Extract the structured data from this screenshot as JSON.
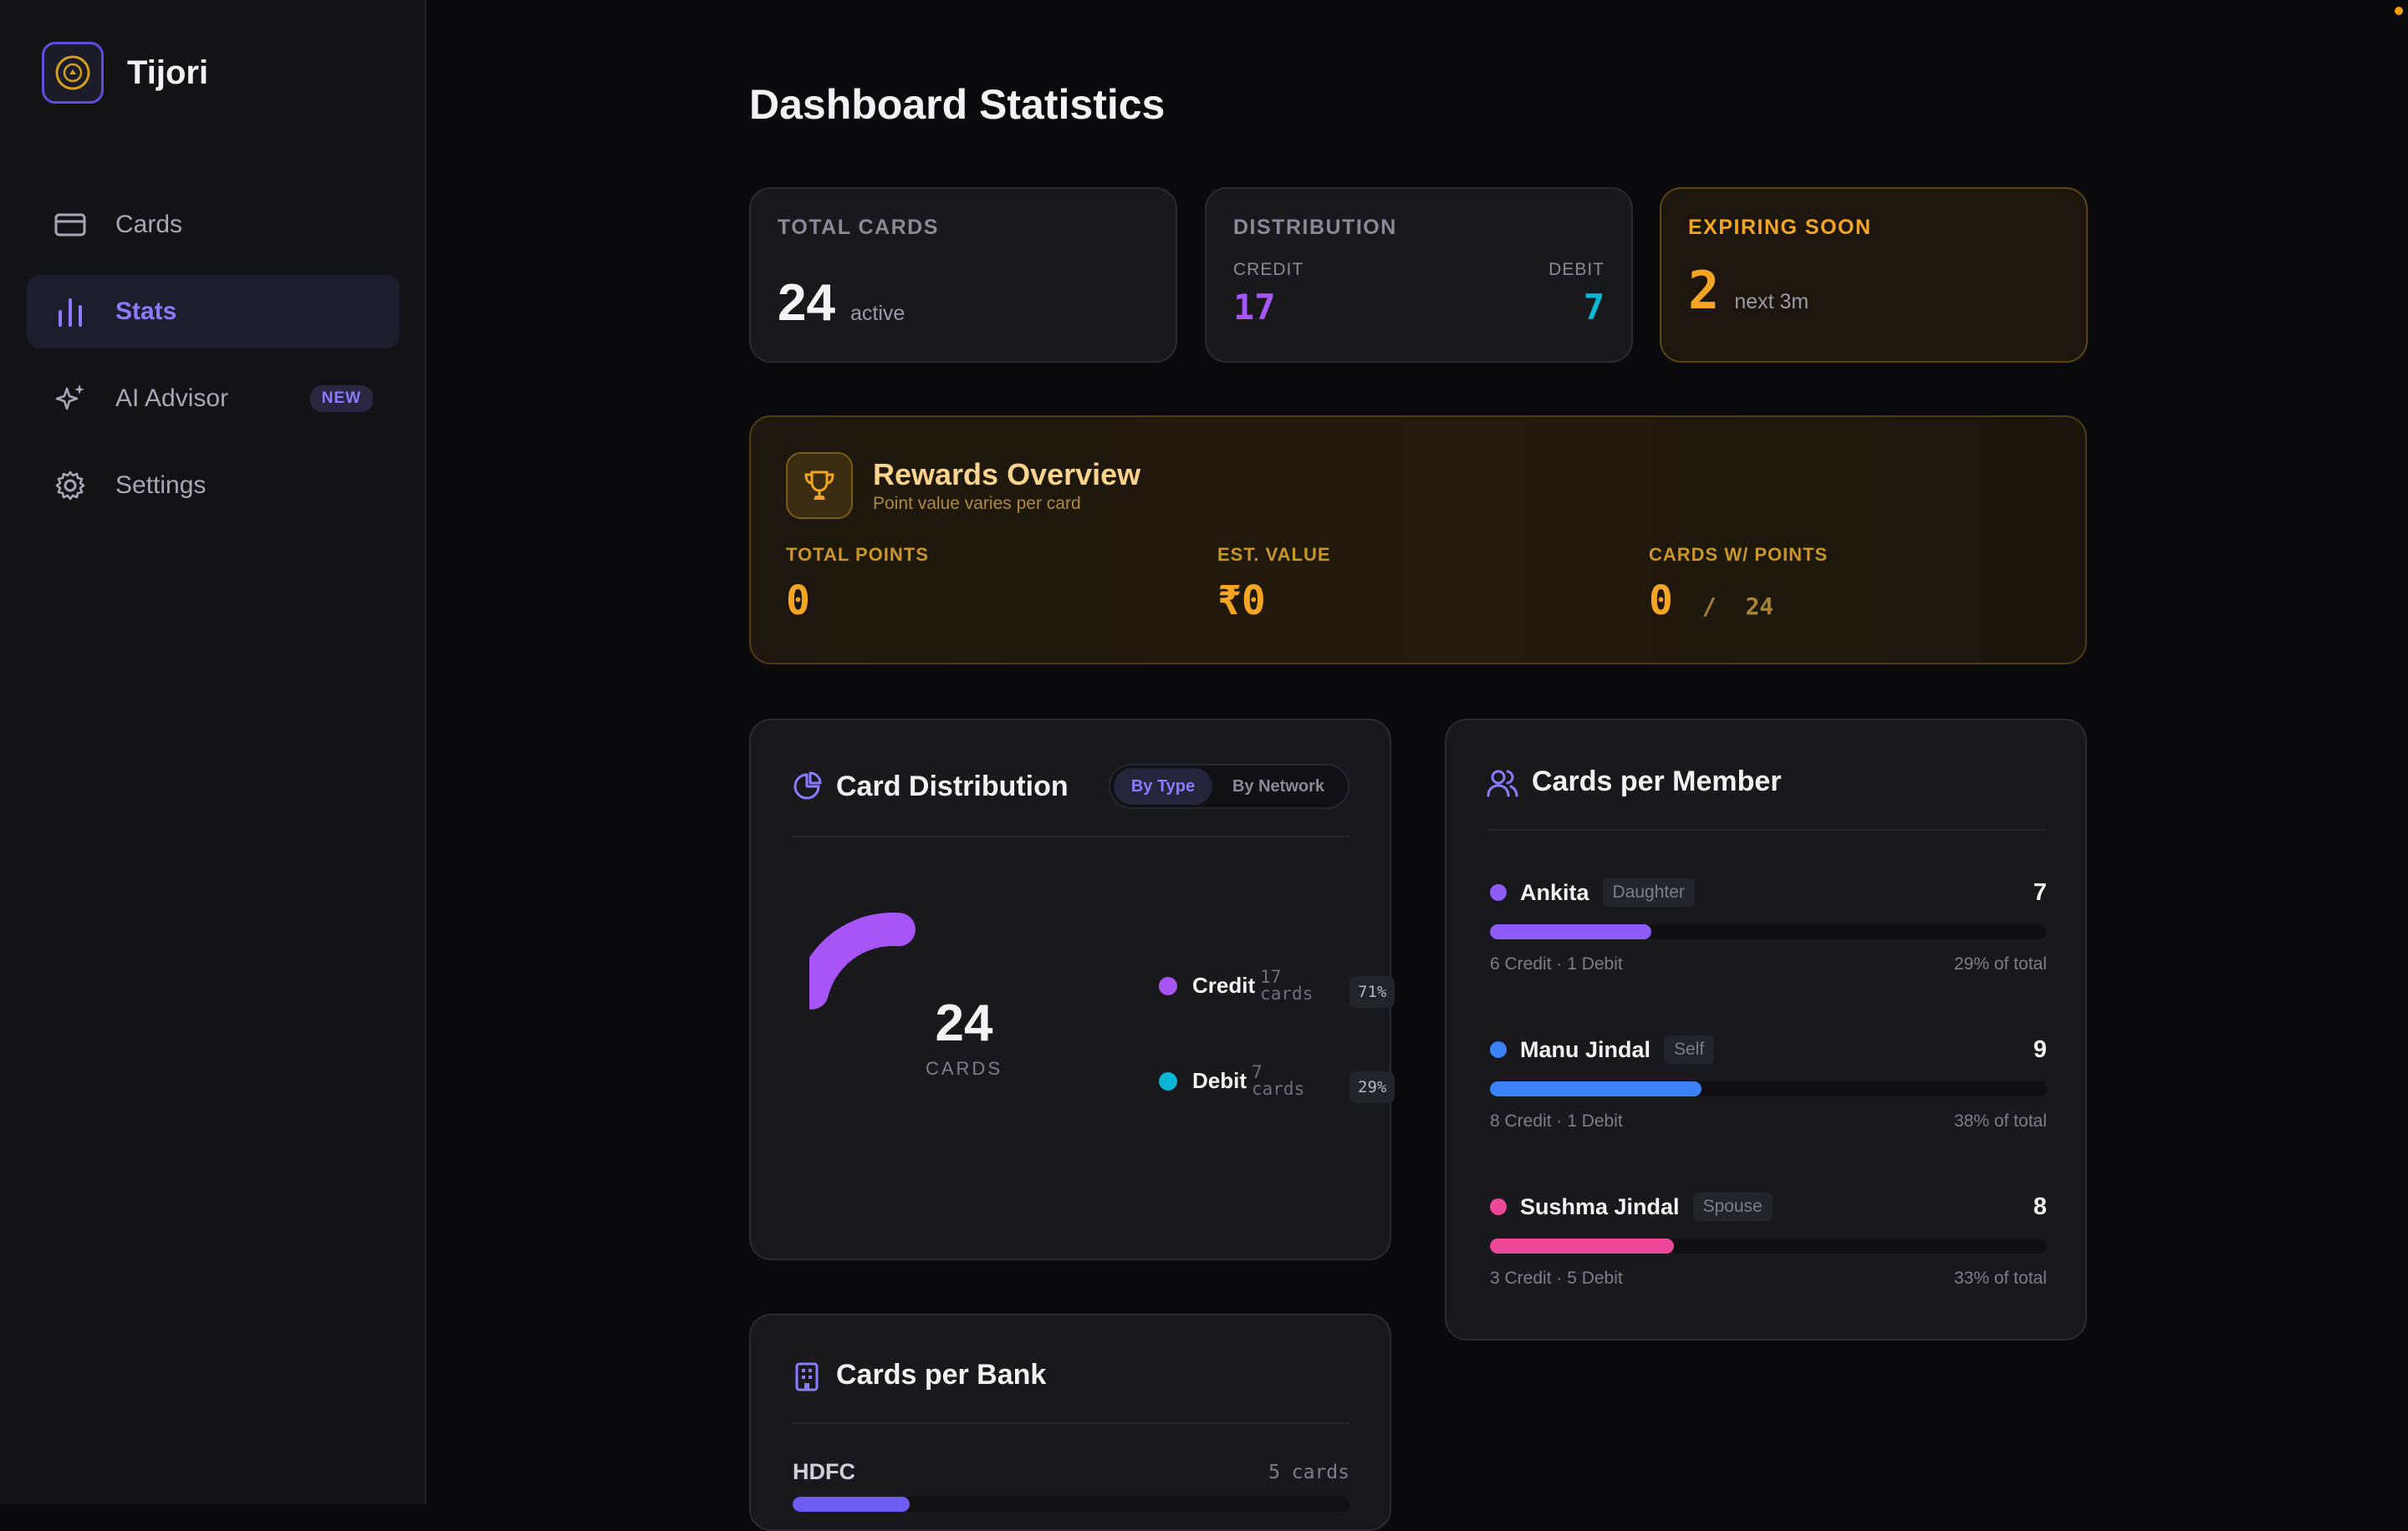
{
  "app": {
    "name": "Tijori"
  },
  "sidebar": {
    "items": [
      {
        "label": "Cards",
        "icon": "credit-card-icon"
      },
      {
        "label": "Stats",
        "icon": "bar-chart-icon",
        "active": true
      },
      {
        "label": "AI Advisor",
        "icon": "sparkles-icon",
        "badge": "NEW"
      },
      {
        "label": "Settings",
        "icon": "gear-icon"
      }
    ]
  },
  "page": {
    "title": "Dashboard Statistics"
  },
  "stats": {
    "total": {
      "label": "TOTAL CARDS",
      "value": "24",
      "sub": "active"
    },
    "distribution": {
      "label": "DISTRIBUTION",
      "credit_label": "CREDIT",
      "credit_value": "17",
      "debit_label": "DEBIT",
      "debit_value": "7"
    },
    "expiring": {
      "label": "EXPIRING SOON",
      "value": "2",
      "sub": "next 3m"
    }
  },
  "rewards": {
    "title": "Rewards Overview",
    "subtitle": "Point value varies per card",
    "total_points": {
      "label": "TOTAL POINTS",
      "value": "0"
    },
    "est_value": {
      "label": "EST. VALUE",
      "value": "₹0"
    },
    "cards_with_points": {
      "label": "CARDS W/ POINTS",
      "value": "0",
      "sep": "/",
      "total": "24"
    }
  },
  "card_distribution": {
    "title": "Card Distribution",
    "tabs": [
      "By Type",
      "By Network"
    ],
    "active_tab": "By Type",
    "center_value": "24",
    "center_label": "CARDS",
    "legend": [
      {
        "name": "Credit",
        "count": "17",
        "unit": "cards",
        "pct": "71%",
        "color": "#a855f7"
      },
      {
        "name": "Debit",
        "count": "7",
        "unit": "cards",
        "pct": "29%",
        "color": "#06b6d4"
      }
    ]
  },
  "members": {
    "title": "Cards per Member",
    "items": [
      {
        "name": "Ankita",
        "relation": "Daughter",
        "count": "7",
        "detail": "6 Credit · 1 Debit",
        "share": "29% of total",
        "fill": 0.29,
        "color": "#8b5cf6"
      },
      {
        "name": "Manu Jindal",
        "relation": "Self",
        "count": "9",
        "detail": "8 Credit · 1 Debit",
        "share": "38% of total",
        "fill": 0.38,
        "color": "#3b82f6"
      },
      {
        "name": "Sushma Jindal",
        "relation": "Spouse",
        "count": "8",
        "detail": "3 Credit · 5 Debit",
        "share": "33% of total",
        "fill": 0.33,
        "color": "#ec4899"
      }
    ]
  },
  "banks": {
    "title": "Cards per Bank",
    "items": [
      {
        "name": "HDFC",
        "count": "5 cards",
        "fill": 0.21,
        "color": "#6d5cf0"
      }
    ]
  }
}
